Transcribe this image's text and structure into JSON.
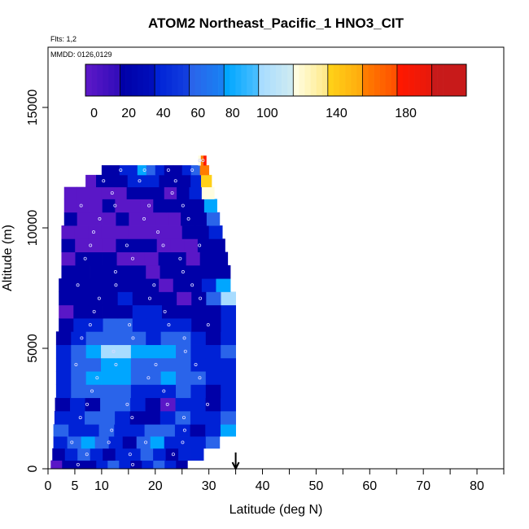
{
  "chart_data": {
    "type": "heatmap",
    "title": "ATOM2 Northeast_Pacific_1 HNO3_CIT",
    "annotations": [
      "Flts: 1,2",
      "MMDD: 0126,0129"
    ],
    "xlabel": "Latitude (deg N)",
    "ylabel": "Altitude (m)",
    "xlim": [
      0,
      85
    ],
    "ylim": [
      0,
      17500
    ],
    "x_ticks": [
      0,
      5,
      10,
      20,
      30,
      40,
      50,
      60,
      70,
      80
    ],
    "x_minor_ticks": [
      15,
      25,
      35,
      45,
      55,
      65,
      75,
      85
    ],
    "y_ticks": [
      0,
      5000,
      10000,
      15000
    ],
    "grid": false,
    "colorbar": {
      "position": "top inside",
      "tick_labels": [
        0,
        20,
        40,
        60,
        80,
        100,
        140,
        180
      ],
      "segment_edges": [
        -5,
        15,
        35,
        55,
        75,
        95,
        115,
        135,
        155,
        175,
        195,
        215
      ],
      "colors": [
        "#5a17c7",
        "#0000a8",
        "#0022d6",
        "#2a64ea",
        "#00a6ff",
        "#a8dcff",
        "#fffde0",
        "#ffd018",
        "#ff7c00",
        "#ff1800",
        "#c81a1a"
      ]
    },
    "marker": {
      "label": "arrow",
      "x": 35
    },
    "profile_rows": [
      {
        "alt0": 0,
        "alt1": 350,
        "x0": 0.5,
        "x1": 26,
        "values": [
          0,
          15,
          30,
          25,
          40,
          55,
          40,
          20,
          35,
          60,
          45,
          30
        ]
      },
      {
        "alt0": 350,
        "alt1": 850,
        "x0": 0.8,
        "x1": 29,
        "values": [
          20,
          40,
          60,
          45,
          25,
          35,
          50,
          65,
          40,
          30,
          45,
          35
        ]
      },
      {
        "alt0": 850,
        "alt1": 1350,
        "x0": 1,
        "x1": 32,
        "values": [
          40,
          70,
          80,
          55,
          45,
          30,
          60,
          75,
          50,
          35,
          45,
          60
        ]
      },
      {
        "alt0": 1350,
        "alt1": 1850,
        "x0": 1,
        "x1": 35,
        "values": [
          55,
          35,
          45,
          60,
          50,
          40,
          65,
          70,
          45,
          25,
          40,
          80
        ]
      },
      {
        "alt0": 1850,
        "alt1": 2400,
        "x0": 1.2,
        "x1": 35,
        "values": [
          35,
          50,
          70,
          65,
          45,
          15,
          25,
          45,
          60,
          40,
          35,
          55
        ]
      },
      {
        "alt0": 2400,
        "alt1": 2950,
        "x0": 1.3,
        "x1": 35,
        "values": [
          25,
          40,
          30,
          55,
          60,
          35,
          20,
          10,
          35,
          45,
          30,
          40
        ]
      },
      {
        "alt0": 2950,
        "alt1": 3500,
        "x0": 1.5,
        "x1": 35,
        "values": [
          50,
          65,
          55,
          70,
          60,
          45,
          40,
          50,
          55,
          35,
          30,
          45
        ]
      },
      {
        "alt0": 3500,
        "alt1": 4050,
        "x0": 1.5,
        "x1": 35,
        "values": [
          45,
          60,
          75,
          85,
          80,
          70,
          65,
          75,
          70,
          55,
          40,
          50
        ]
      },
      {
        "alt0": 4050,
        "alt1": 4600,
        "x0": 1.5,
        "x1": 35,
        "values": [
          35,
          55,
          70,
          80,
          75,
          65,
          60,
          70,
          65,
          45,
          35,
          40
        ]
      },
      {
        "alt0": 4600,
        "alt1": 5150,
        "x0": 1.5,
        "x1": 35,
        "values": [
          40,
          60,
          80,
          100,
          95,
          85,
          75,
          80,
          70,
          50,
          40,
          55
        ]
      },
      {
        "alt0": 5150,
        "alt1": 5700,
        "x0": 1.5,
        "x1": 35,
        "values": [
          30,
          45,
          55,
          65,
          60,
          55,
          50,
          60,
          55,
          35,
          30,
          45
        ]
      },
      {
        "alt0": 5700,
        "alt1": 6250,
        "x0": 2,
        "x1": 35,
        "values": [
          25,
          35,
          45,
          55,
          60,
          50,
          45,
          40,
          35,
          25,
          20,
          40
        ]
      },
      {
        "alt0": 6250,
        "alt1": 6800,
        "x0": 2,
        "x1": 35,
        "values": [
          10,
          20,
          30,
          25,
          30,
          40,
          35,
          25,
          20,
          15,
          25,
          45
        ]
      },
      {
        "alt0": 6800,
        "alt1": 7350,
        "x0": 2,
        "x1": 35,
        "values": [
          20,
          15,
          25,
          30,
          35,
          30,
          20,
          15,
          10,
          20,
          65,
          110
        ]
      },
      {
        "alt0": 7350,
        "alt1": 7900,
        "x0": 2,
        "x1": 34,
        "values": [
          30,
          25,
          20,
          15,
          25,
          20,
          15,
          10,
          20,
          15,
          40,
          75
        ]
      },
      {
        "alt0": 7900,
        "alt1": 8450,
        "x0": 2.5,
        "x1": 34,
        "values": [
          15,
          20,
          30,
          25,
          20,
          15,
          10,
          20,
          25,
          15,
          20,
          30
        ]
      },
      {
        "alt0": 8450,
        "alt1": 9000,
        "x0": 2.5,
        "x1": 33.5,
        "values": [
          10,
          15,
          20,
          15,
          10,
          5,
          10,
          15,
          20,
          10,
          15,
          20
        ]
      },
      {
        "alt0": 9000,
        "alt1": 9550,
        "x0": 2.5,
        "x1": 33,
        "values": [
          15,
          10,
          5,
          10,
          15,
          20,
          15,
          10,
          5,
          10,
          15,
          25
        ]
      },
      {
        "alt0": 9550,
        "alt1": 10100,
        "x0": 2.5,
        "x1": 32.5,
        "values": [
          10,
          5,
          0,
          5,
          10,
          5,
          0,
          5,
          10,
          15,
          20,
          35
        ]
      },
      {
        "alt0": 10100,
        "alt1": 10650,
        "x0": 3,
        "x1": 32,
        "values": [
          15,
          10,
          5,
          10,
          15,
          10,
          5,
          0,
          5,
          15,
          25,
          60
        ]
      },
      {
        "alt0": 10650,
        "alt1": 11200,
        "x0": 3,
        "x1": 31.5,
        "values": [
          10,
          5,
          10,
          15,
          10,
          5,
          10,
          15,
          20,
          15,
          30,
          90
        ]
      },
      {
        "alt0": 11200,
        "alt1": 11700,
        "x0": 3,
        "x1": 31,
        "values": [
          5,
          0,
          5,
          10,
          5,
          15,
          20,
          15,
          10,
          20,
          35,
          120
        ]
      },
      {
        "alt0": 11700,
        "alt1": 12200,
        "x0": 7,
        "x1": 30.5,
        "values": [
          10,
          15,
          20,
          30,
          45,
          40,
          35,
          25,
          20,
          25,
          45,
          140
        ]
      },
      {
        "alt0": 12200,
        "alt1": 12600,
        "x0": 10,
        "x1": 30,
        "values": [
          15,
          25,
          35,
          50,
          80,
          65,
          40,
          30,
          25,
          35,
          60,
          160
        ]
      },
      {
        "alt0": 12600,
        "alt1": 13000,
        "x0": 28,
        "x1": 29.5,
        "values": [
          120,
          170,
          190
        ]
      }
    ]
  }
}
